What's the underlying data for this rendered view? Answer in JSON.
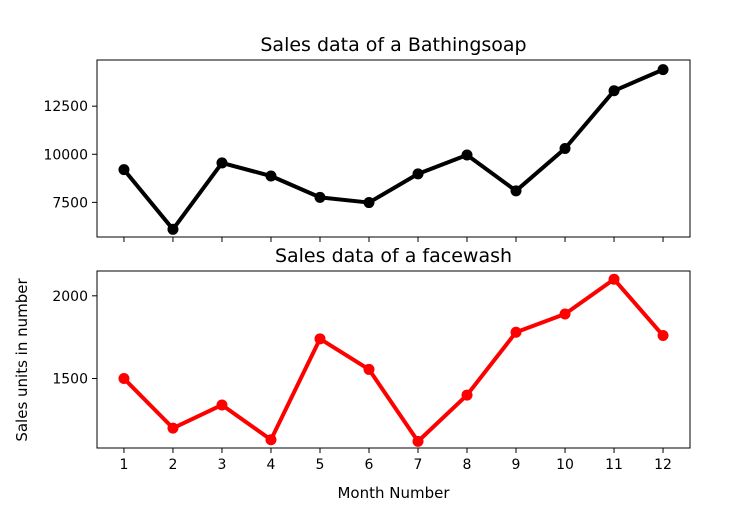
{
  "chart_data": [
    {
      "type": "line",
      "title": "Sales data of  a Bathingsoap",
      "x": [
        1,
        2,
        3,
        4,
        5,
        6,
        7,
        8,
        9,
        10,
        11,
        12
      ],
      "series": [
        {
          "values": [
            9200,
            6100,
            9550,
            8870,
            7760,
            7490,
            8980,
            9960,
            8100,
            10300,
            13300,
            14400
          ],
          "color": "#000000"
        }
      ],
      "xlim": [
        0.45,
        12.55
      ],
      "ylim": [
        5700,
        14900
      ],
      "yticks": [
        7500,
        10000,
        12500
      ],
      "show_xtick_labels": false,
      "xlabel": "",
      "ylabel": "",
      "grid": false
    },
    {
      "type": "line",
      "title": "Sales data of  a facewash",
      "x": [
        1,
        2,
        3,
        4,
        5,
        6,
        7,
        8,
        9,
        10,
        11,
        12
      ],
      "series": [
        {
          "values": [
            1500,
            1200,
            1340,
            1130,
            1740,
            1555,
            1120,
            1400,
            1780,
            1890,
            2100,
            1760
          ],
          "color": "#ff0000"
        }
      ],
      "xlim": [
        0.45,
        12.55
      ],
      "ylim": [
        1080,
        2150
      ],
      "yticks": [
        1500,
        2000
      ],
      "xticks": [
        1,
        2,
        3,
        4,
        5,
        6,
        7,
        8,
        9,
        10,
        11,
        12
      ],
      "show_xtick_labels": true,
      "xlabel": "Month Number",
      "ylabel": "Sales units in number",
      "grid": false
    }
  ]
}
